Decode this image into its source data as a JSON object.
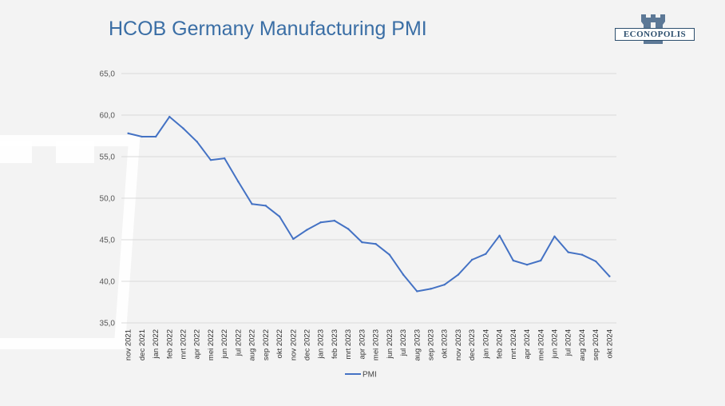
{
  "header": {
    "title": "HCOB Germany Manufacturing PMI",
    "logo_text": "ECONOPOLIS"
  },
  "colors": {
    "background": "#f3f3f3",
    "title": "#3a6ea5",
    "line": "#4472c4",
    "logo": "#2d4f6e"
  },
  "chart_data": {
    "type": "line",
    "title": "",
    "xlabel": "",
    "ylabel": "",
    "ylim": [
      35,
      65
    ],
    "yticks": [
      "35,0",
      "40,0",
      "45,0",
      "50,0",
      "55,0",
      "60,0",
      "65,0"
    ],
    "grid": true,
    "legend": "bottom",
    "categories": [
      "nov 2021",
      "dec 2021",
      "jan 2022",
      "feb 2022",
      "mrt 2022",
      "apr 2022",
      "mei 2022",
      "jun 2022",
      "jul 2022",
      "aug 2022",
      "sep 2022",
      "okt 2022",
      "nov 2022",
      "dec 2022",
      "jan 2023",
      "feb 2023",
      "mrt 2023",
      "apr 2023",
      "mei 2023",
      "jun 2023",
      "jul 2023",
      "aug 2023",
      "sep 2023",
      "okt 2023",
      "nov 2023",
      "dec 2023",
      "jan 2024",
      "feb 2024",
      "mrt 2024",
      "apr 2024",
      "mei 2024",
      "jun 2024",
      "jul 2024",
      "aug 2024",
      "sep 2024",
      "okt 2024"
    ],
    "series": [
      {
        "name": "PMI",
        "values": [
          57.8,
          57.4,
          57.4,
          59.8,
          58.4,
          56.8,
          54.6,
          54.8,
          52.0,
          49.3,
          49.1,
          47.8,
          45.1,
          46.2,
          47.1,
          47.3,
          46.3,
          44.7,
          44.5,
          43.2,
          40.8,
          38.8,
          39.1,
          39.6,
          40.8,
          42.6,
          43.3,
          45.5,
          42.5,
          42.0,
          42.5,
          45.4,
          43.5,
          43.2,
          42.4,
          40.6
        ]
      }
    ]
  }
}
